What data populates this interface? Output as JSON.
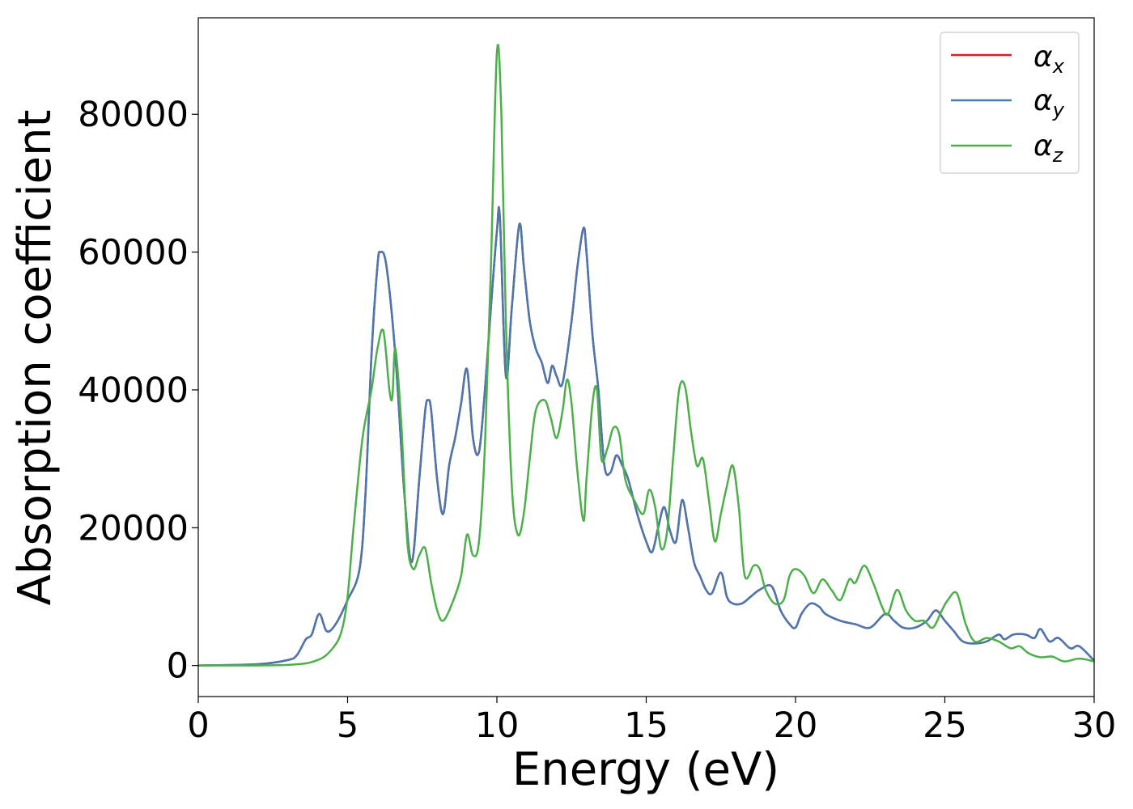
{
  "chart_data": {
    "type": "line",
    "title": "",
    "xlabel": "Energy (eV)",
    "ylabel": "Absorption coefficient",
    "xlim": [
      0,
      30
    ],
    "ylim": [
      -4500,
      94000
    ],
    "xticks": [
      0,
      5,
      10,
      15,
      20,
      25,
      30
    ],
    "yticks": [
      0,
      20000,
      40000,
      60000,
      80000
    ],
    "grid": false,
    "legend_position": "top-right",
    "series": [
      {
        "name": "α",
        "subscript": "x",
        "color": "#e41a1c",
        "x": [
          0,
          2,
          3.0,
          3.3,
          3.6,
          3.8,
          4.05,
          4.3,
          4.6,
          5.0,
          5.4,
          5.6,
          5.8,
          6.0,
          6.1,
          6.3,
          6.6,
          6.9,
          7.15,
          7.4,
          7.6,
          7.7,
          7.8,
          8.0,
          8.2,
          8.4,
          8.6,
          8.8,
          9.0,
          9.2,
          9.4,
          9.6,
          9.8,
          10.0,
          10.1,
          10.3,
          10.5,
          10.75,
          10.9,
          11.1,
          11.3,
          11.5,
          11.7,
          11.85,
          12.0,
          12.2,
          12.5,
          12.7,
          12.9,
          13.0,
          13.2,
          13.4,
          13.6,
          13.8,
          14.0,
          14.2,
          14.4,
          14.7,
          15.0,
          15.2,
          15.4,
          15.6,
          15.8,
          16.0,
          16.2,
          16.4,
          16.6,
          16.8,
          17.0,
          17.2,
          17.5,
          17.7,
          17.9,
          18.2,
          18.5,
          18.8,
          19.2,
          19.5,
          19.8,
          20.0,
          20.2,
          20.5,
          20.8,
          21.0,
          21.5,
          22.0,
          22.5,
          23.0,
          23.3,
          23.6,
          24.0,
          24.4,
          24.7,
          25.0,
          25.3,
          25.6,
          26.0,
          26.4,
          26.8,
          27.0,
          27.3,
          27.7,
          28.0,
          28.2,
          28.5,
          28.8,
          29.2,
          29.5,
          30.0
        ],
        "values": [
          0,
          200,
          800,
          1500,
          3800,
          4500,
          7500,
          5000,
          6000,
          9500,
          14000,
          25000,
          45000,
          58000,
          60000,
          58000,
          45000,
          25000,
          15000,
          27000,
          37000,
          38500,
          37000,
          27000,
          22000,
          29000,
          33000,
          38000,
          43000,
          33000,
          31000,
          40000,
          52000,
          63000,
          65000,
          42000,
          52000,
          64000,
          58000,
          50000,
          46000,
          44000,
          41000,
          43500,
          42000,
          41000,
          50000,
          58000,
          63500,
          60000,
          48000,
          40000,
          29000,
          28000,
          30500,
          29000,
          27000,
          22000,
          18000,
          16500,
          20000,
          23000,
          19500,
          18000,
          24000,
          20000,
          15000,
          13000,
          11000,
          10500,
          13500,
          10000,
          9000,
          9000,
          10000,
          11000,
          11500,
          8000,
          6000,
          5500,
          7500,
          9000,
          8500,
          7500,
          6500,
          6000,
          5500,
          7500,
          6500,
          5500,
          5500,
          6500,
          8000,
          6500,
          5000,
          3500,
          3200,
          3500,
          4500,
          3800,
          4500,
          4500,
          4000,
          5300,
          3500,
          4000,
          2500,
          2800,
          700
        ]
      },
      {
        "name": "α",
        "subscript": "y",
        "color": "#4878b0",
        "x": [
          0,
          2,
          3.0,
          3.3,
          3.6,
          3.8,
          4.05,
          4.3,
          4.6,
          5.0,
          5.4,
          5.6,
          5.8,
          6.0,
          6.1,
          6.3,
          6.6,
          6.9,
          7.15,
          7.4,
          7.6,
          7.7,
          7.8,
          8.0,
          8.2,
          8.4,
          8.6,
          8.8,
          9.0,
          9.2,
          9.4,
          9.6,
          9.8,
          10.0,
          10.1,
          10.3,
          10.5,
          10.75,
          10.9,
          11.1,
          11.3,
          11.5,
          11.7,
          11.85,
          12.0,
          12.2,
          12.5,
          12.7,
          12.9,
          13.0,
          13.2,
          13.4,
          13.6,
          13.8,
          14.0,
          14.2,
          14.4,
          14.7,
          15.0,
          15.2,
          15.4,
          15.6,
          15.8,
          16.0,
          16.2,
          16.4,
          16.6,
          16.8,
          17.0,
          17.2,
          17.5,
          17.7,
          17.9,
          18.2,
          18.5,
          18.8,
          19.2,
          19.5,
          19.8,
          20.0,
          20.2,
          20.5,
          20.8,
          21.0,
          21.5,
          22.0,
          22.5,
          23.0,
          23.3,
          23.6,
          24.0,
          24.4,
          24.7,
          25.0,
          25.3,
          25.6,
          26.0,
          26.4,
          26.8,
          27.0,
          27.3,
          27.7,
          28.0,
          28.2,
          28.5,
          28.8,
          29.2,
          29.5,
          30.0
        ],
        "values": [
          0,
          200,
          800,
          1500,
          3800,
          4500,
          7500,
          5000,
          6000,
          9500,
          14000,
          25000,
          45000,
          58000,
          60000,
          58000,
          45000,
          25000,
          15000,
          27000,
          37000,
          38500,
          37000,
          27000,
          22000,
          29000,
          33000,
          38000,
          43000,
          33000,
          31000,
          40000,
          52000,
          63000,
          65000,
          42000,
          52000,
          64000,
          58000,
          50000,
          46000,
          44000,
          41000,
          43500,
          42000,
          41000,
          50000,
          58000,
          63500,
          60000,
          48000,
          40000,
          29000,
          28000,
          30500,
          29000,
          27000,
          22000,
          18000,
          16500,
          20000,
          23000,
          19500,
          18000,
          24000,
          20000,
          15000,
          13000,
          11000,
          10500,
          13500,
          10000,
          9000,
          9000,
          10000,
          11000,
          11500,
          8000,
          6000,
          5500,
          7500,
          9000,
          8500,
          7500,
          6500,
          6000,
          5500,
          7500,
          6500,
          5500,
          5500,
          6500,
          8000,
          6500,
          5000,
          3500,
          3200,
          3500,
          4500,
          3800,
          4500,
          4500,
          4000,
          5300,
          3500,
          4000,
          2500,
          2800,
          700
        ]
      },
      {
        "name": "α",
        "subscript": "z",
        "color": "#4daf4a",
        "x": [
          0,
          3,
          4.0,
          4.5,
          4.8,
          5.0,
          5.2,
          5.5,
          5.8,
          6.0,
          6.2,
          6.4,
          6.5,
          6.6,
          6.8,
          7.0,
          7.2,
          7.4,
          7.6,
          7.8,
          8.0,
          8.2,
          8.5,
          8.8,
          9.0,
          9.2,
          9.4,
          9.6,
          9.8,
          10.0,
          10.15,
          10.3,
          10.5,
          10.7,
          10.9,
          11.1,
          11.3,
          11.6,
          11.8,
          12.0,
          12.2,
          12.35,
          12.5,
          12.7,
          12.9,
          13.0,
          13.2,
          13.35,
          13.5,
          13.7,
          13.9,
          14.1,
          14.3,
          14.6,
          14.9,
          15.1,
          15.3,
          15.5,
          15.7,
          15.9,
          16.1,
          16.3,
          16.5,
          16.7,
          16.9,
          17.1,
          17.3,
          17.5,
          17.7,
          17.9,
          18.1,
          18.3,
          18.6,
          18.8,
          19.0,
          19.3,
          19.6,
          19.8,
          20.0,
          20.3,
          20.6,
          20.9,
          21.2,
          21.5,
          21.8,
          22.0,
          22.3,
          22.6,
          22.9,
          23.1,
          23.4,
          23.7,
          24.0,
          24.3,
          24.6,
          24.9,
          25.1,
          25.4,
          25.7,
          26.0,
          26.4,
          26.8,
          27.2,
          27.5,
          27.8,
          28.2,
          28.6,
          29.0,
          29.5,
          30.0
        ],
        "values": [
          0,
          100,
          800,
          2500,
          5000,
          10000,
          20000,
          33000,
          40000,
          46000,
          48500,
          40000,
          39000,
          46000,
          35000,
          18000,
          14000,
          16000,
          17000,
          12000,
          8000,
          6500,
          9000,
          13000,
          19000,
          16000,
          18000,
          32000,
          58000,
          89000,
          80000,
          50000,
          26000,
          19000,
          22000,
          30000,
          37000,
          38500,
          36000,
          33000,
          37000,
          41500,
          38000,
          28000,
          21000,
          27000,
          38000,
          40000,
          30000,
          31500,
          34500,
          33500,
          27000,
          24000,
          22000,
          25500,
          23000,
          17000,
          19500,
          30000,
          40000,
          40500,
          34000,
          29000,
          30000,
          24000,
          18000,
          22000,
          26000,
          29000,
          23000,
          13000,
          14500,
          14000,
          11000,
          9000,
          9500,
          13000,
          14000,
          13000,
          10500,
          12500,
          11000,
          9500,
          12500,
          12000,
          14500,
          12000,
          8500,
          7500,
          11000,
          8000,
          6500,
          6500,
          5500,
          8000,
          9500,
          10500,
          6000,
          3500,
          4000,
          3500,
          2500,
          2800,
          1800,
          1200,
          1300,
          600,
          1000,
          600
        ]
      }
    ]
  }
}
